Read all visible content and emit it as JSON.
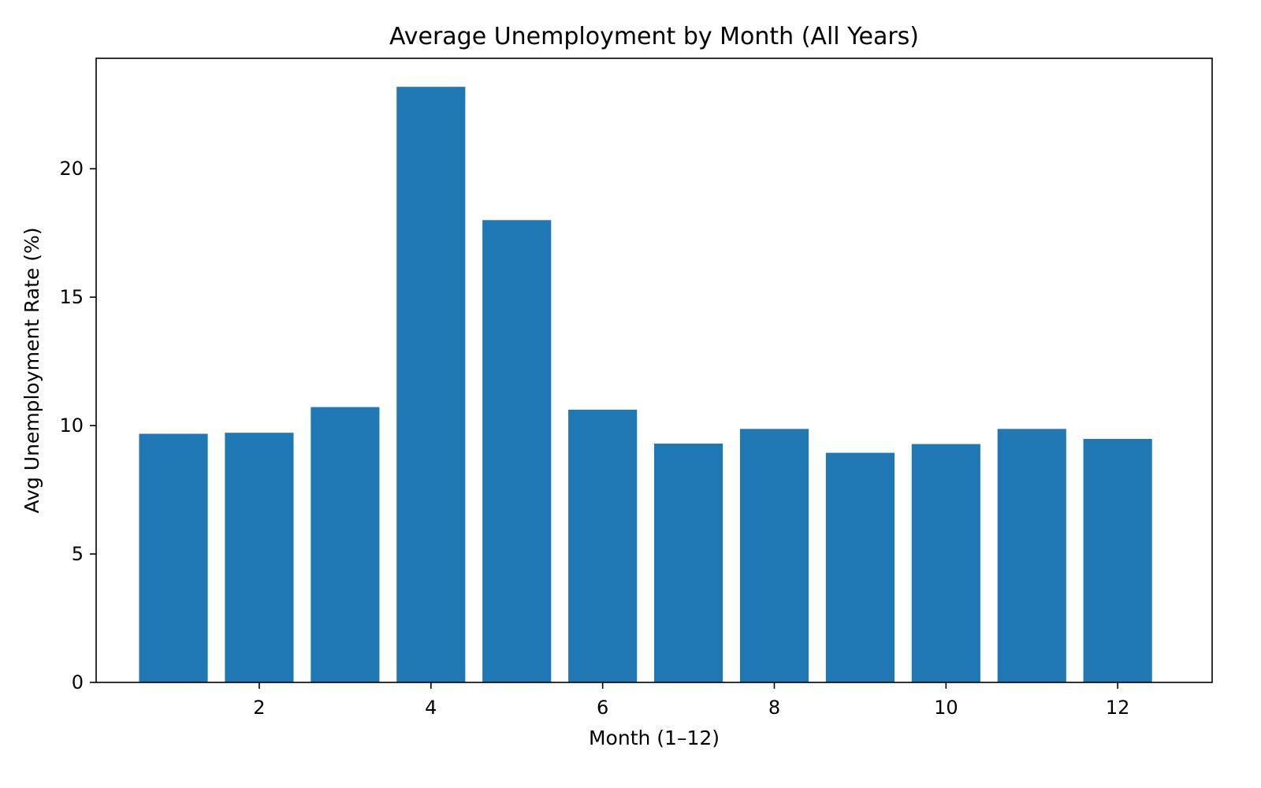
{
  "chart_data": {
    "type": "bar",
    "title": "Average Unemployment by Month (All Years)",
    "xlabel": "Month (1–12)",
    "ylabel": "Avg Unemployment Rate (%)",
    "categories": [
      1,
      2,
      3,
      4,
      5,
      6,
      7,
      8,
      9,
      10,
      11,
      12
    ],
    "values": [
      9.68,
      9.72,
      10.72,
      23.19,
      18.0,
      10.62,
      9.3,
      9.87,
      8.94,
      9.28,
      9.87,
      9.48
    ],
    "xlim": [
      0.1,
      13.1
    ],
    "ylim": [
      0,
      24.3
    ],
    "xticks": [
      2,
      4,
      6,
      8,
      10,
      12
    ],
    "yticks": [
      0,
      5,
      10,
      15,
      20
    ],
    "grid": false,
    "bar_color": "#1f77b4",
    "axis_color": "#000000"
  }
}
